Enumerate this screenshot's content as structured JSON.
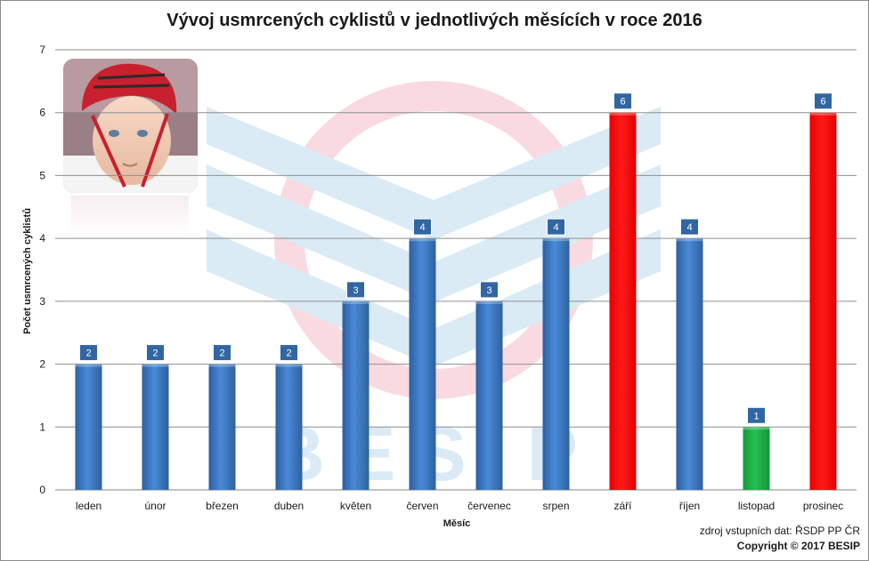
{
  "chart_data": {
    "type": "bar",
    "title": "Vývoj usmrcených cyklistů v jednotlivých měsících v roce 2016",
    "xlabel": "Měsíc",
    "ylabel": "Počet usmrcených cyklistů",
    "categories": [
      "leden",
      "únor",
      "březen",
      "duben",
      "květen",
      "červen",
      "červenec",
      "srpen",
      "září",
      "říjen",
      "listopad",
      "prosinec"
    ],
    "values": [
      2,
      2,
      2,
      2,
      3,
      4,
      3,
      4,
      6,
      4,
      1,
      6
    ],
    "bar_colors": [
      "#3f7fd0",
      "#3f7fd0",
      "#3f7fd0",
      "#3f7fd0",
      "#3f7fd0",
      "#3f7fd0",
      "#3f7fd0",
      "#3f7fd0",
      "#ff0000",
      "#3f7fd0",
      "#1fb44a",
      "#ff0000"
    ],
    "ylim": [
      0,
      7
    ],
    "yticks": [
      0,
      1,
      2,
      3,
      4,
      5,
      6,
      7
    ],
    "grid": true,
    "data_labels": true
  },
  "footer": {
    "source": "zdroj vstupních dat: ŘSDP PP ČR",
    "copyright": "Copyright © 2017  BESIP"
  },
  "watermark": {
    "text": "BESIP",
    "colors": {
      "shield": "#d6e9f5",
      "ring": "#f9d6dd"
    }
  },
  "photo": {
    "icon": "child-with-helmet-photo",
    "colors": {
      "helmet": "#c8202e",
      "face": "#f1cdb7",
      "shirt": "#f4f4f4",
      "background": "#9a7f86"
    }
  }
}
